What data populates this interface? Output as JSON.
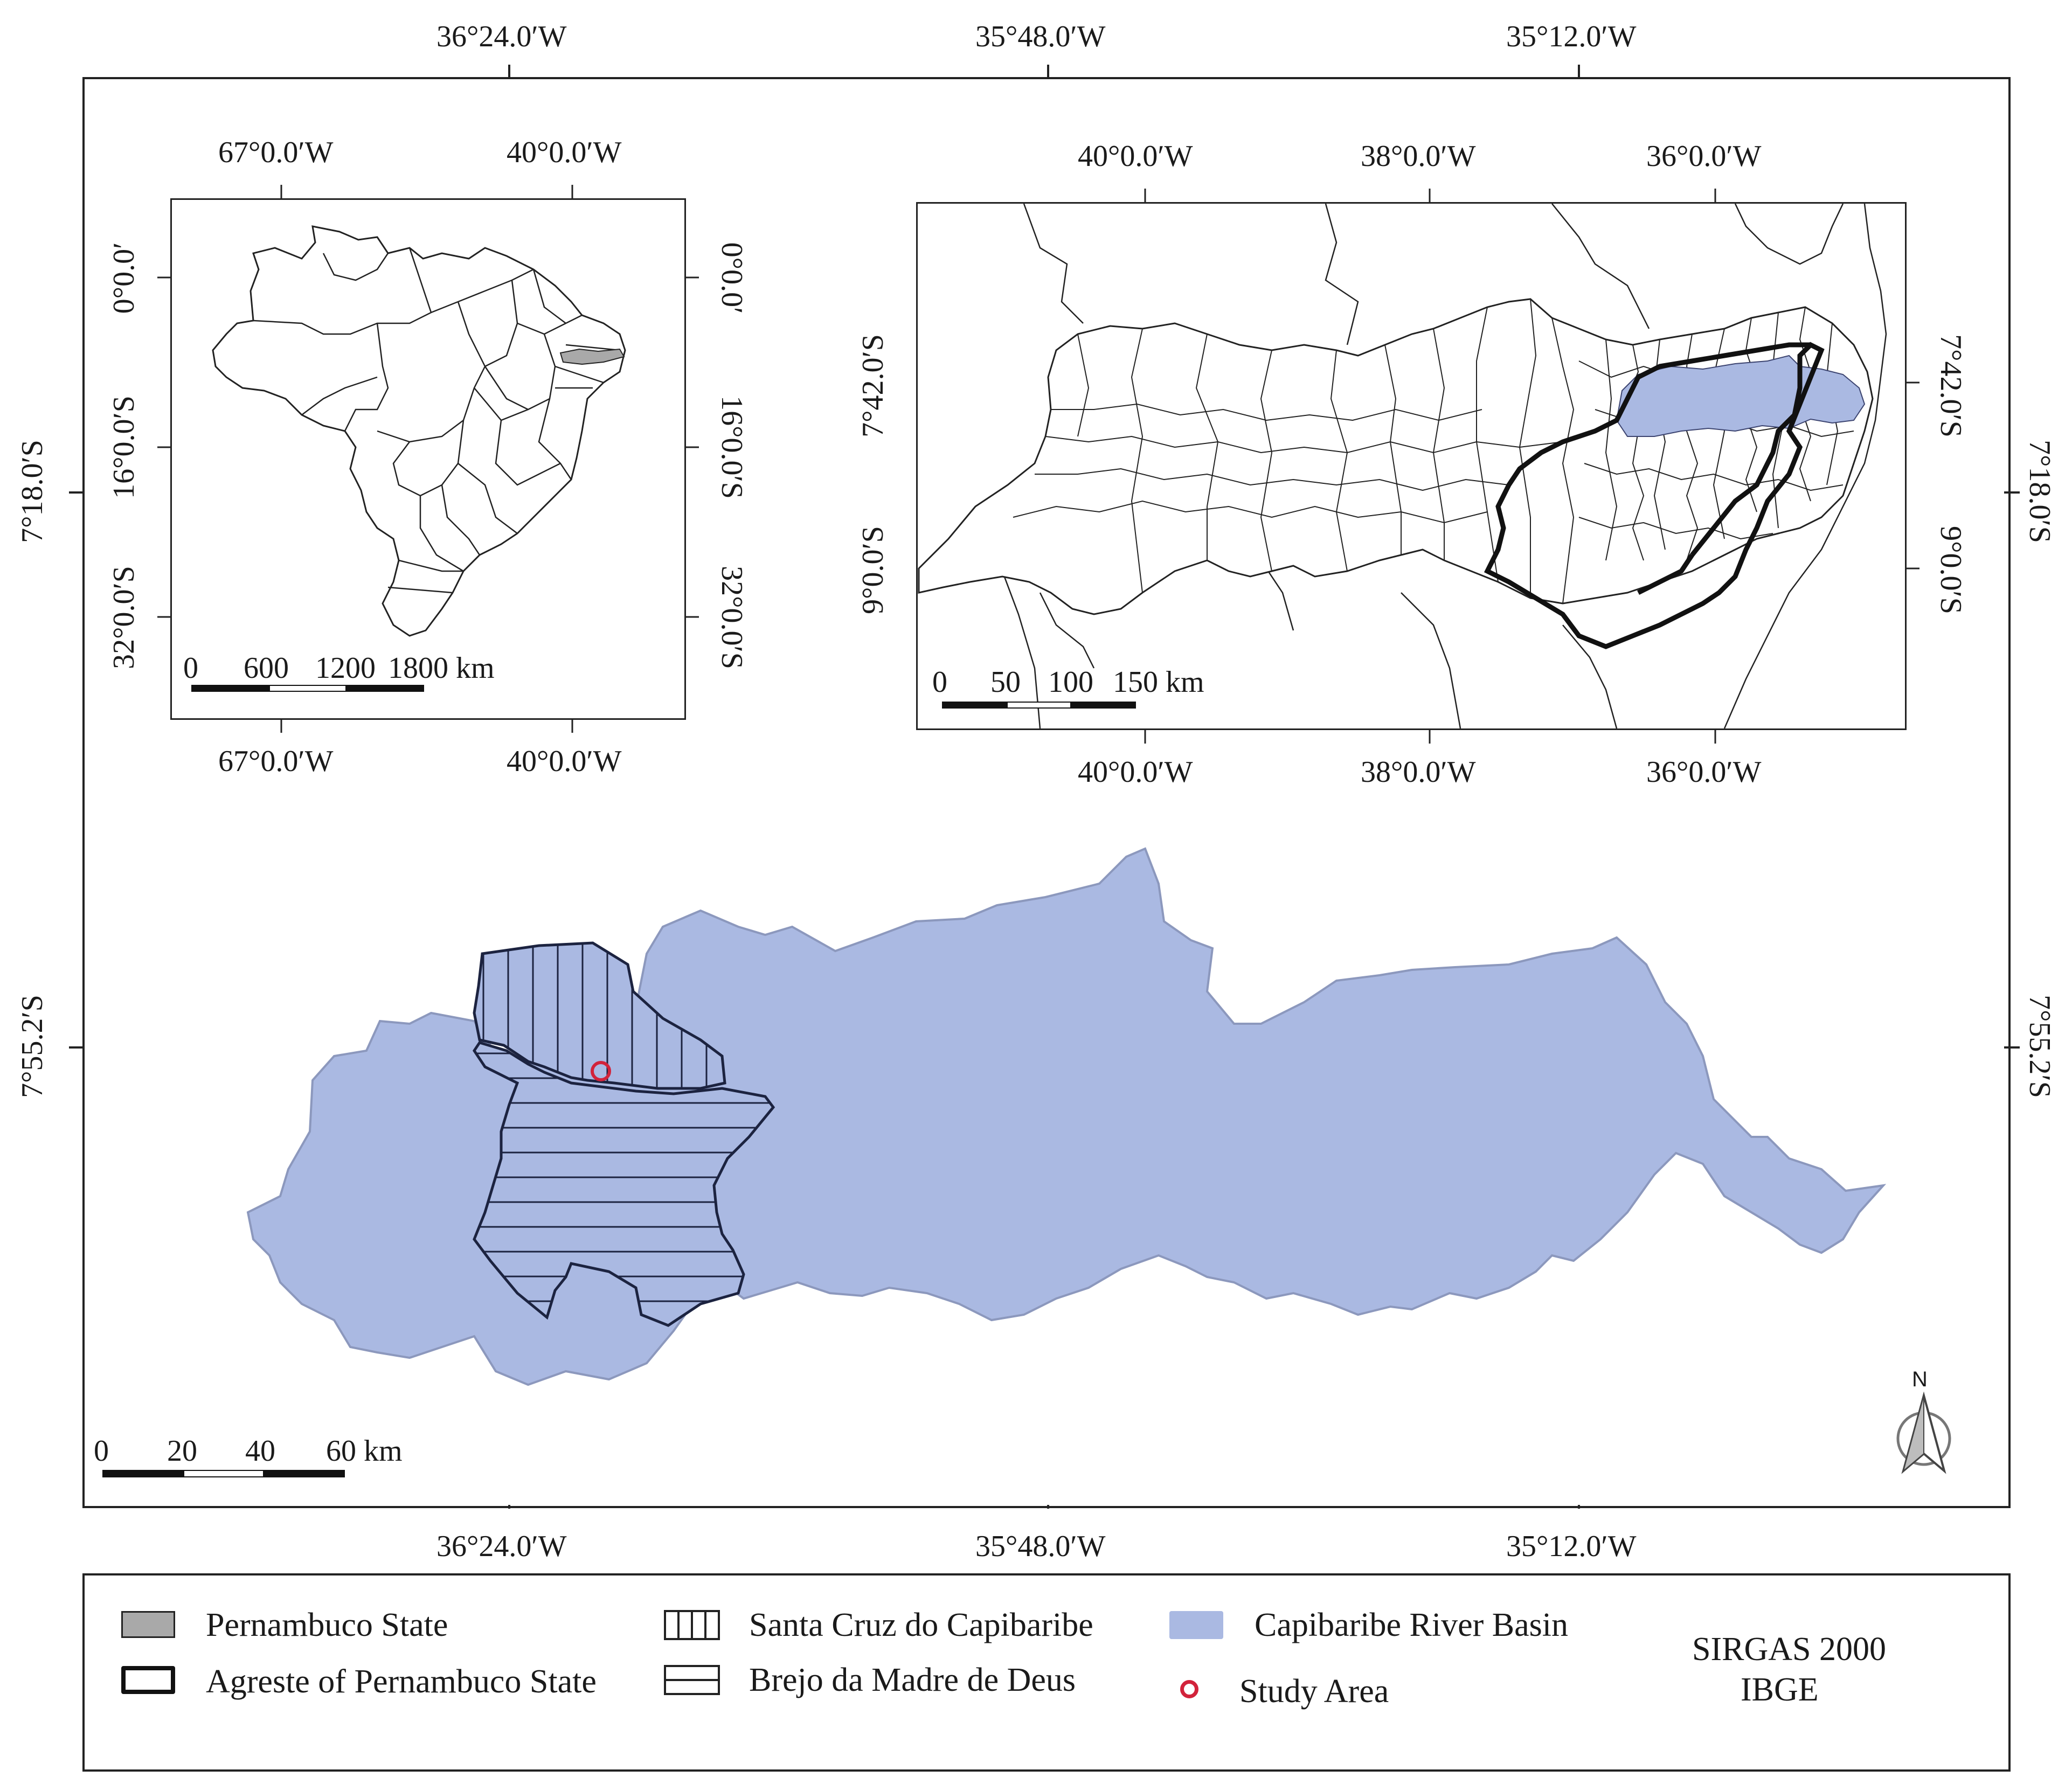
{
  "main_map": {
    "top_ticks": [
      "36°24.0′W",
      "35°48.0′W",
      "35°12.0′W"
    ],
    "bottom_ticks": [
      "36°24.0′W",
      "35°48.0′W",
      "35°12.0′W"
    ],
    "left_ticks": [
      "7°18.0′S",
      "7°55.2′S"
    ],
    "right_ticks": [
      "7°18.0′S",
      "7°55.2′S"
    ],
    "scale": [
      "0",
      "20",
      "40",
      "60 km"
    ],
    "north": "N",
    "colors": {
      "basin": "#aab9e2",
      "basin_stroke": "#8c98bd",
      "study_area": "#d2233b"
    }
  },
  "inset_brazil": {
    "top_ticks": [
      "67°0.0′W",
      "40°0.0′W"
    ],
    "bottom_ticks": [
      "67°0.0′W",
      "40°0.0′W"
    ],
    "side_ticks": [
      "0°0.0′",
      "16°0.0′S",
      "32°0.0′S"
    ],
    "scale": [
      "0",
      "600",
      "1200",
      "1800 km"
    ],
    "colors": {
      "pernambuco": "#a9a9a9"
    }
  },
  "inset_pernambuco": {
    "top_ticks": [
      "40°0.0′W",
      "38°0.0′W",
      "36°0.0′W"
    ],
    "bottom_ticks": [
      "40°0.0′W",
      "38°0.0′W",
      "36°0.0′W"
    ],
    "side_ticks": [
      "7°42.0′S",
      "9°0.0′S"
    ],
    "scale": [
      "0",
      "50",
      "100",
      "150 km"
    ]
  },
  "legend": {
    "items": [
      {
        "label": "Pernambuco State",
        "symbol": "gray-fill"
      },
      {
        "label": "Agreste of Pernambuco State",
        "symbol": "thick-outline"
      },
      {
        "label": "Santa Cruz do Capibaribe",
        "symbol": "vertical-hatch"
      },
      {
        "label": "Brejo da Madre de Deus",
        "symbol": "horizontal-hatch"
      },
      {
        "label": "Capibaribe River Basin",
        "symbol": "blue-fill"
      },
      {
        "label": "Study Area",
        "symbol": "red-circle"
      }
    ],
    "crs": "SIRGAS 2000",
    "source": "IBGE"
  }
}
